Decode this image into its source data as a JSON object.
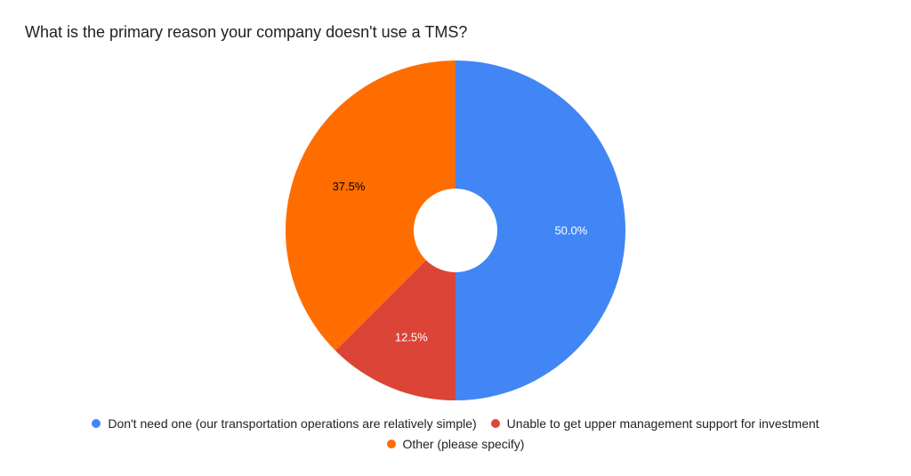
{
  "chart_data": {
    "type": "pie",
    "title": "What is the primary reason your company doesn't use a TMS?",
    "donut": true,
    "slices": [
      {
        "label": "Don't need one (our transportation operations are relatively simple)",
        "value": 50.0,
        "display": "50.0%",
        "color": "#4285F4",
        "label_color": "#ffffff"
      },
      {
        "label": "Unable to get upper management support for investment",
        "value": 12.5,
        "display": "12.5%",
        "color": "#DB4437",
        "label_color": "#ffffff"
      },
      {
        "label": "Other (please specify)",
        "value": 37.5,
        "display": "37.5%",
        "color": "#FF6D01",
        "label_color": "#000000"
      }
    ],
    "legend_position": "bottom"
  }
}
